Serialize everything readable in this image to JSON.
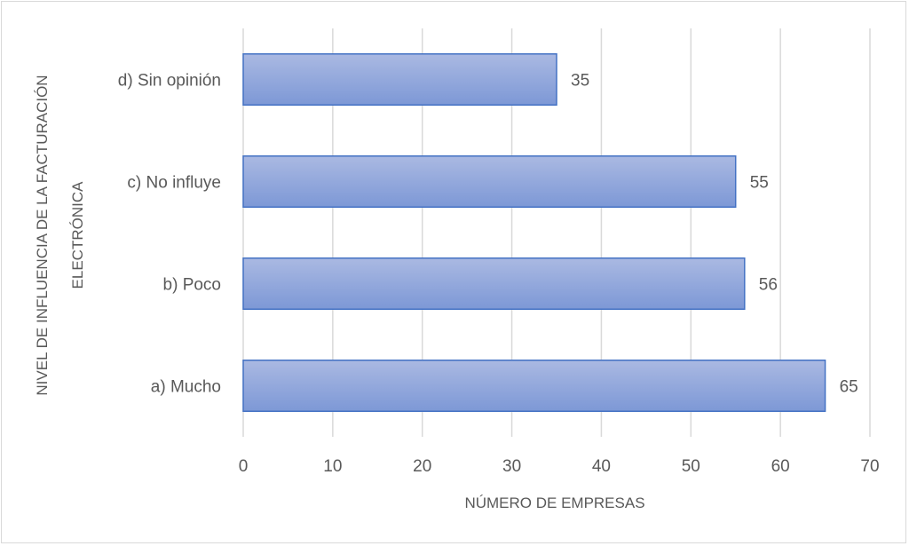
{
  "chart_data": {
    "type": "bar",
    "orientation": "horizontal",
    "categories": [
      "a) Mucho",
      "b) Poco",
      "c) No influye",
      "d) Sin opinión"
    ],
    "values": [
      65,
      56,
      55,
      35
    ],
    "xlabel": "NÚMERO DE EMPRESAS",
    "ylabel_lines": [
      "NIVEL DE INFLUENCIA DE LA FACTURACIÓN",
      "ELECTRÓNICA"
    ],
    "xlim": [
      0,
      70
    ],
    "xticks": [
      0,
      10,
      20,
      30,
      40,
      50,
      60,
      70
    ],
    "grid": true,
    "data_labels": true,
    "bar_color": "#8FA7DC",
    "bar_border_color": "#4472C4",
    "grid_color": "#d9d9d9",
    "text_color": "#595959"
  }
}
